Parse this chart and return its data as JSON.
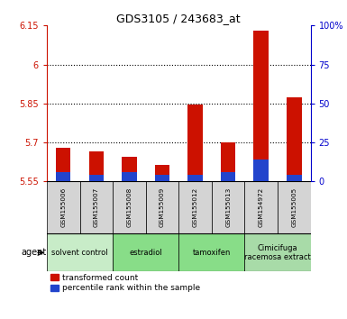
{
  "title": "GDS3105 / 243683_at",
  "samples": [
    "GSM155006",
    "GSM155007",
    "GSM155008",
    "GSM155009",
    "GSM155012",
    "GSM155013",
    "GSM154972",
    "GSM155005"
  ],
  "red_values": [
    5.68,
    5.665,
    5.645,
    5.615,
    5.845,
    5.7,
    6.13,
    5.875
  ],
  "blue_values": [
    5.585,
    5.575,
    5.585,
    5.575,
    5.575,
    5.585,
    5.635,
    5.575
  ],
  "ylim": [
    5.55,
    6.15
  ],
  "yticks_left": [
    5.55,
    5.7,
    5.85,
    6.0,
    6.15
  ],
  "ytick_labels_left": [
    "5.55",
    "5.7",
    "5.85",
    "6",
    "6.15"
  ],
  "yticks_right_pct": [
    0,
    25,
    50,
    75,
    100
  ],
  "ytick_labels_right": [
    "0",
    "25",
    "50",
    "75",
    "100%"
  ],
  "grid_lines": [
    5.7,
    5.85,
    6.0
  ],
  "agent_groups": [
    {
      "label": "solvent control",
      "start": 0,
      "end": 2,
      "color": "#c8ecc8"
    },
    {
      "label": "estradiol",
      "start": 2,
      "end": 4,
      "color": "#88dd88"
    },
    {
      "label": "tamoxifen",
      "start": 4,
      "end": 6,
      "color": "#88dd88"
    },
    {
      "label": "Cimicifuga\nracemosa extract",
      "start": 6,
      "end": 8,
      "color": "#a8dba8"
    }
  ],
  "bar_width": 0.45,
  "red_color": "#cc1100",
  "blue_color": "#2244cc",
  "plot_bg": "#ffffff",
  "left_axis_color": "#cc1100",
  "right_axis_color": "#0000cc",
  "sample_box_color": "#d4d4d4",
  "legend_red": "transformed count",
  "legend_blue": "percentile rank within the sample"
}
